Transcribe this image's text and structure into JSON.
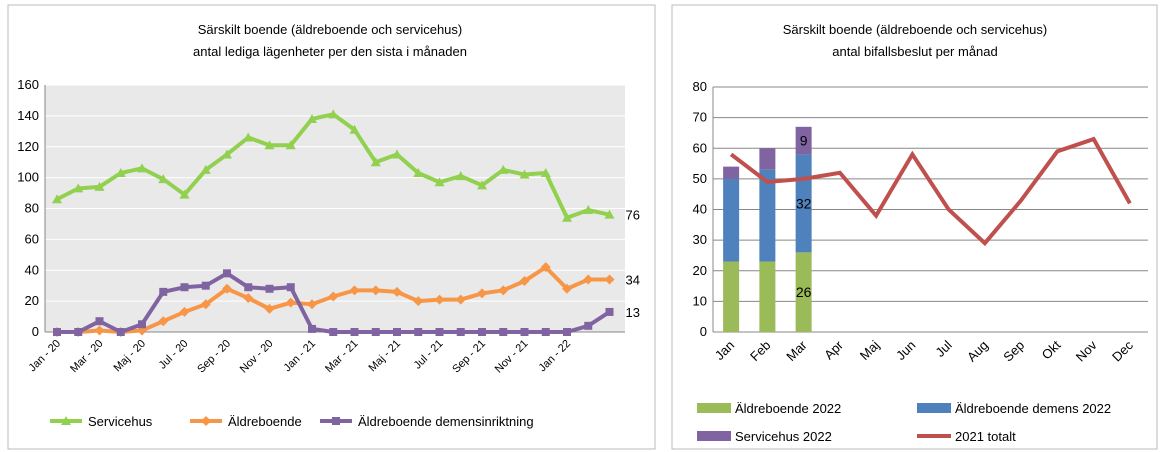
{
  "chart_data": [
    {
      "type": "line",
      "title": "Särskilt boende (äldreboende och servicehus)",
      "subtitle": "antal lediga lägenheter per den sista i månaden",
      "categories": [
        "Jan - 20",
        null,
        "Mar - 20",
        null,
        "Maj - 20",
        null,
        "Jul - 20",
        null,
        "Sep - 20",
        null,
        "Nov - 20",
        null,
        "Jan - 21",
        null,
        "Mar - 21",
        null,
        "Maj - 21",
        null,
        "Jul - 21",
        null,
        "Sep - 21",
        null,
        "Nov - 21",
        null,
        "Jan - 22",
        null,
        null
      ],
      "series": [
        {
          "name": "Servicehus",
          "color": "#92d050",
          "marker": "triangle",
          "values": [
            86,
            93,
            94,
            103,
            106,
            99,
            89,
            105,
            115,
            126,
            121,
            121,
            138,
            141,
            131,
            110,
            115,
            103,
            97,
            101,
            95,
            105,
            102,
            103,
            74,
            79,
            76
          ]
        },
        {
          "name": "Äldreboende",
          "color": "#f79646",
          "marker": "diamond",
          "values": [
            0,
            0,
            1,
            0,
            1,
            7,
            13,
            18,
            28,
            22,
            15,
            19,
            18,
            23,
            27,
            27,
            26,
            20,
            21,
            21,
            25,
            27,
            33,
            42,
            28,
            34,
            34
          ]
        },
        {
          "name": "Äldreboende demensinriktning",
          "color": "#8064a2",
          "marker": "square",
          "values": [
            0,
            0,
            7,
            0,
            5,
            26,
            29,
            30,
            38,
            29,
            28,
            29,
            2,
            0,
            0,
            0,
            0,
            0,
            0,
            0,
            0,
            0,
            0,
            0,
            0,
            4,
            13
          ]
        }
      ],
      "ylim": [
        0,
        160
      ],
      "yticks": [
        0,
        20,
        40,
        60,
        80,
        100,
        120,
        140,
        160
      ],
      "grid": true,
      "background": "#e9e9e9"
    },
    {
      "type": "bar",
      "title": "Särskilt boende (äldreboende och servicehus)",
      "subtitle": "antal bifallsbeslut per månad",
      "categories": [
        "Jan",
        "Feb",
        "Mar",
        "Apr",
        "Maj",
        "Jun",
        "Jul",
        "Aug",
        "Sep",
        "Okt",
        "Nov",
        "Dec"
      ],
      "series": [
        {
          "name": "Äldreboende 2022",
          "color": "#9bbb59",
          "kind": "bar",
          "values": [
            23,
            23,
            26,
            null,
            null,
            null,
            null,
            null,
            null,
            null,
            null,
            null
          ]
        },
        {
          "name": "Äldreboende demens 2022",
          "color": "#4f81bd",
          "kind": "bar",
          "values": [
            27,
            30,
            32,
            null,
            null,
            null,
            null,
            null,
            null,
            null,
            null,
            null
          ]
        },
        {
          "name": "Servicehus 2022",
          "color": "#8064a2",
          "kind": "bar",
          "values": [
            4,
            7,
            9,
            null,
            null,
            null,
            null,
            null,
            null,
            null,
            null,
            null
          ]
        },
        {
          "name": "2021 totalt",
          "color": "#c0504d",
          "kind": "line",
          "values": [
            58,
            49,
            50,
            52,
            38,
            58,
            40,
            29,
            43,
            59,
            63,
            42
          ]
        }
      ],
      "ylim": [
        0,
        80
      ],
      "yticks": [
        0,
        10,
        20,
        30,
        40,
        50,
        60,
        70,
        80
      ],
      "grid": true,
      "stacked": true
    }
  ]
}
